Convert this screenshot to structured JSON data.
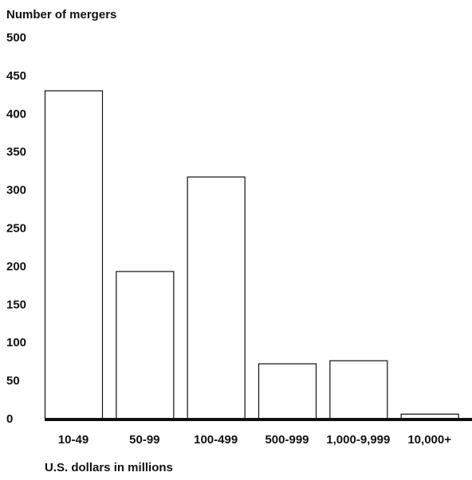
{
  "chart_data": {
    "type": "bar",
    "ylabel": "Number of mergers",
    "xlabel": "U.S. dollars in millions",
    "categories": [
      "10-49",
      "50-99",
      "100-499",
      "500-999",
      "1,000-9,999",
      "10,000+"
    ],
    "values": [
      430,
      193,
      317,
      72,
      76,
      6
    ],
    "ylim": [
      0,
      500
    ],
    "yticks": [
      0,
      50,
      100,
      150,
      200,
      250,
      300,
      350,
      400,
      450,
      500
    ],
    "grid": false,
    "colors": {
      "bar_fill": "#ffffff",
      "bar_stroke": "#111111",
      "baseline": "#111111",
      "text": "#111111"
    }
  }
}
